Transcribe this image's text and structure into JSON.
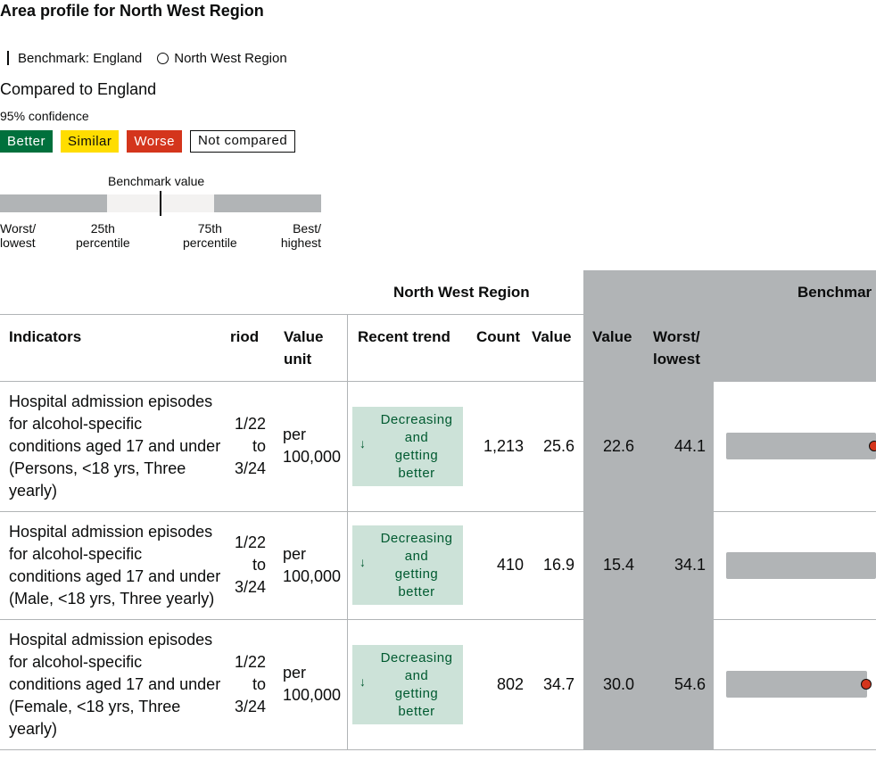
{
  "title": "Area profile for North West Region",
  "legend": {
    "benchmark": "Benchmark: England",
    "area": "North West Region"
  },
  "comparison": {
    "heading": "Compared to England",
    "confidence": "95% confidence",
    "keys": {
      "better": "Better",
      "similar": "Similar",
      "worse": "Worse",
      "not_compared": "Not compared"
    }
  },
  "benchmark_key": {
    "label": "Benchmark value",
    "worst_1": "Worst/",
    "worst_2": "lowest",
    "p25_1": "25th",
    "p25_2": "percentile",
    "p75_1": "75th",
    "p75_2": "percentile",
    "best_1": "Best/",
    "best_2": "highest"
  },
  "table": {
    "group_region": "North West Region",
    "group_benchmark": "Benchmar",
    "headers": {
      "indicators": "Indicators",
      "period": "riod",
      "value_unit_1": "Value",
      "value_unit_2": "unit",
      "recent_trend": "Recent trend",
      "count": "Count",
      "value": "Value",
      "bench_value": "Value",
      "worst_1": "Worst/",
      "worst_2": "lowest"
    },
    "rows": [
      {
        "indicator": [
          "Hospital admission episodes",
          "for alcohol-specific",
          "conditions aged 17 and under",
          "(Persons, <18 yrs, Three",
          "yearly)"
        ],
        "period": [
          "1/22",
          "to",
          "3/24"
        ],
        "unit": [
          "per",
          "100,000"
        ],
        "trend_arrow": "↓",
        "trend": [
          "Decreasing",
          "and",
          "getting",
          "better"
        ],
        "count": "1,213",
        "value": "25.6",
        "bench_value": "22.6",
        "worst": "44.1",
        "dot_visible": true
      },
      {
        "indicator": [
          "Hospital admission episodes",
          "for alcohol-specific",
          "conditions aged 17 and under",
          "(Male, <18 yrs, Three yearly)"
        ],
        "period": [
          "1/22",
          "to",
          "3/24"
        ],
        "unit": [
          "per",
          "100,000"
        ],
        "trend_arrow": "↓",
        "trend": [
          "Decreasing",
          "and",
          "getting",
          "better"
        ],
        "count": "410",
        "value": "16.9",
        "bench_value": "15.4",
        "worst": "34.1",
        "dot_visible": false
      },
      {
        "indicator": [
          "Hospital admission episodes",
          "for alcohol-specific",
          "conditions aged 17 and under",
          "(Female, <18 yrs, Three",
          "yearly)"
        ],
        "period": [
          "1/22",
          "to",
          "3/24"
        ],
        "unit": [
          "per",
          "100,000"
        ],
        "trend_arrow": "↓",
        "trend": [
          "Decreasing",
          "and",
          "getting",
          "better"
        ],
        "count": "802",
        "value": "34.7",
        "bench_value": "30.0",
        "worst": "54.6",
        "dot_visible": true
      }
    ]
  },
  "colors": {
    "better": "#00703c",
    "similar": "#ffdd00",
    "worse": "#d4351c",
    "trend_bg": "#cce2d8",
    "benchmark_grey": "#b1b4b6"
  }
}
